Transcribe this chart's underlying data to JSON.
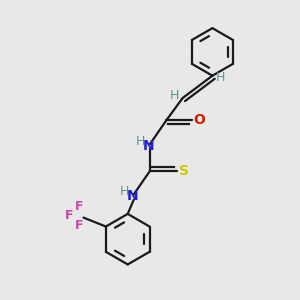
{
  "bg_color": "#e8e8e8",
  "bond_color": "#1a1a1a",
  "H_color": "#4a9a9a",
  "N_color": "#2020cc",
  "O_color": "#cc2000",
  "S_color": "#cccc00",
  "F_color": "#cc44aa",
  "figsize": [
    3.0,
    3.0
  ],
  "dpi": 100,
  "xlim": [
    0,
    10
  ],
  "ylim": [
    0,
    10
  ]
}
